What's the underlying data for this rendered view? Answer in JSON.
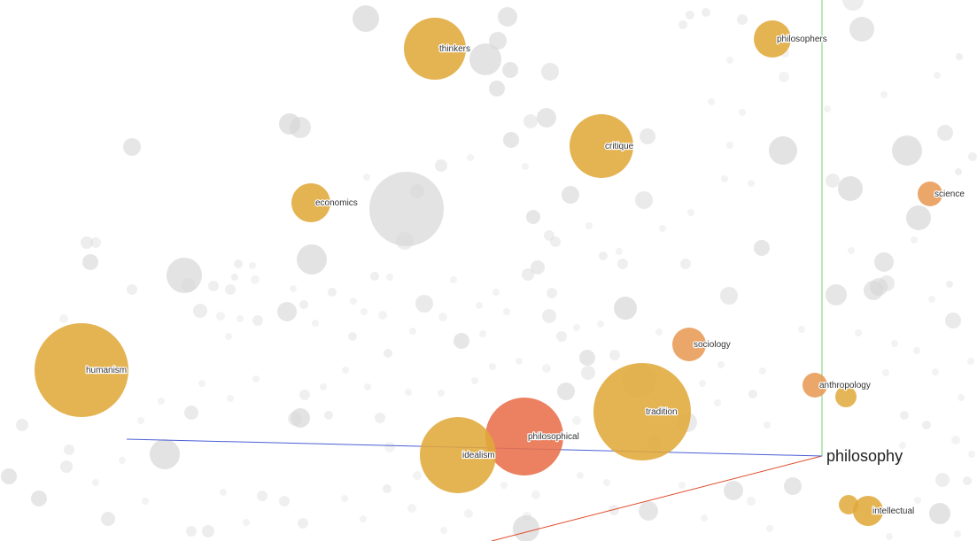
{
  "chart_data": {
    "type": "scatter",
    "center_word": "philosophy",
    "colors": {
      "x_axis": "#e04a2a",
      "y_axis": "#6fd36f",
      "z_axis": "#4a5fd6",
      "background_point": "#d6d6d6",
      "highlight_low": "#e0a93a",
      "highlight_mid": "#e89a55",
      "highlight_high": "#e8704a"
    },
    "labeled_points": [
      {
        "label": "thinkers"
      },
      {
        "label": "philosophers"
      },
      {
        "label": "critique"
      },
      {
        "label": "economics"
      },
      {
        "label": "science"
      },
      {
        "label": "humanism"
      },
      {
        "label": "sociology"
      },
      {
        "label": "anthropology"
      },
      {
        "label": "tradition"
      },
      {
        "label": "philosophical"
      },
      {
        "label": "idealism"
      },
      {
        "label": "intellectual"
      }
    ]
  }
}
